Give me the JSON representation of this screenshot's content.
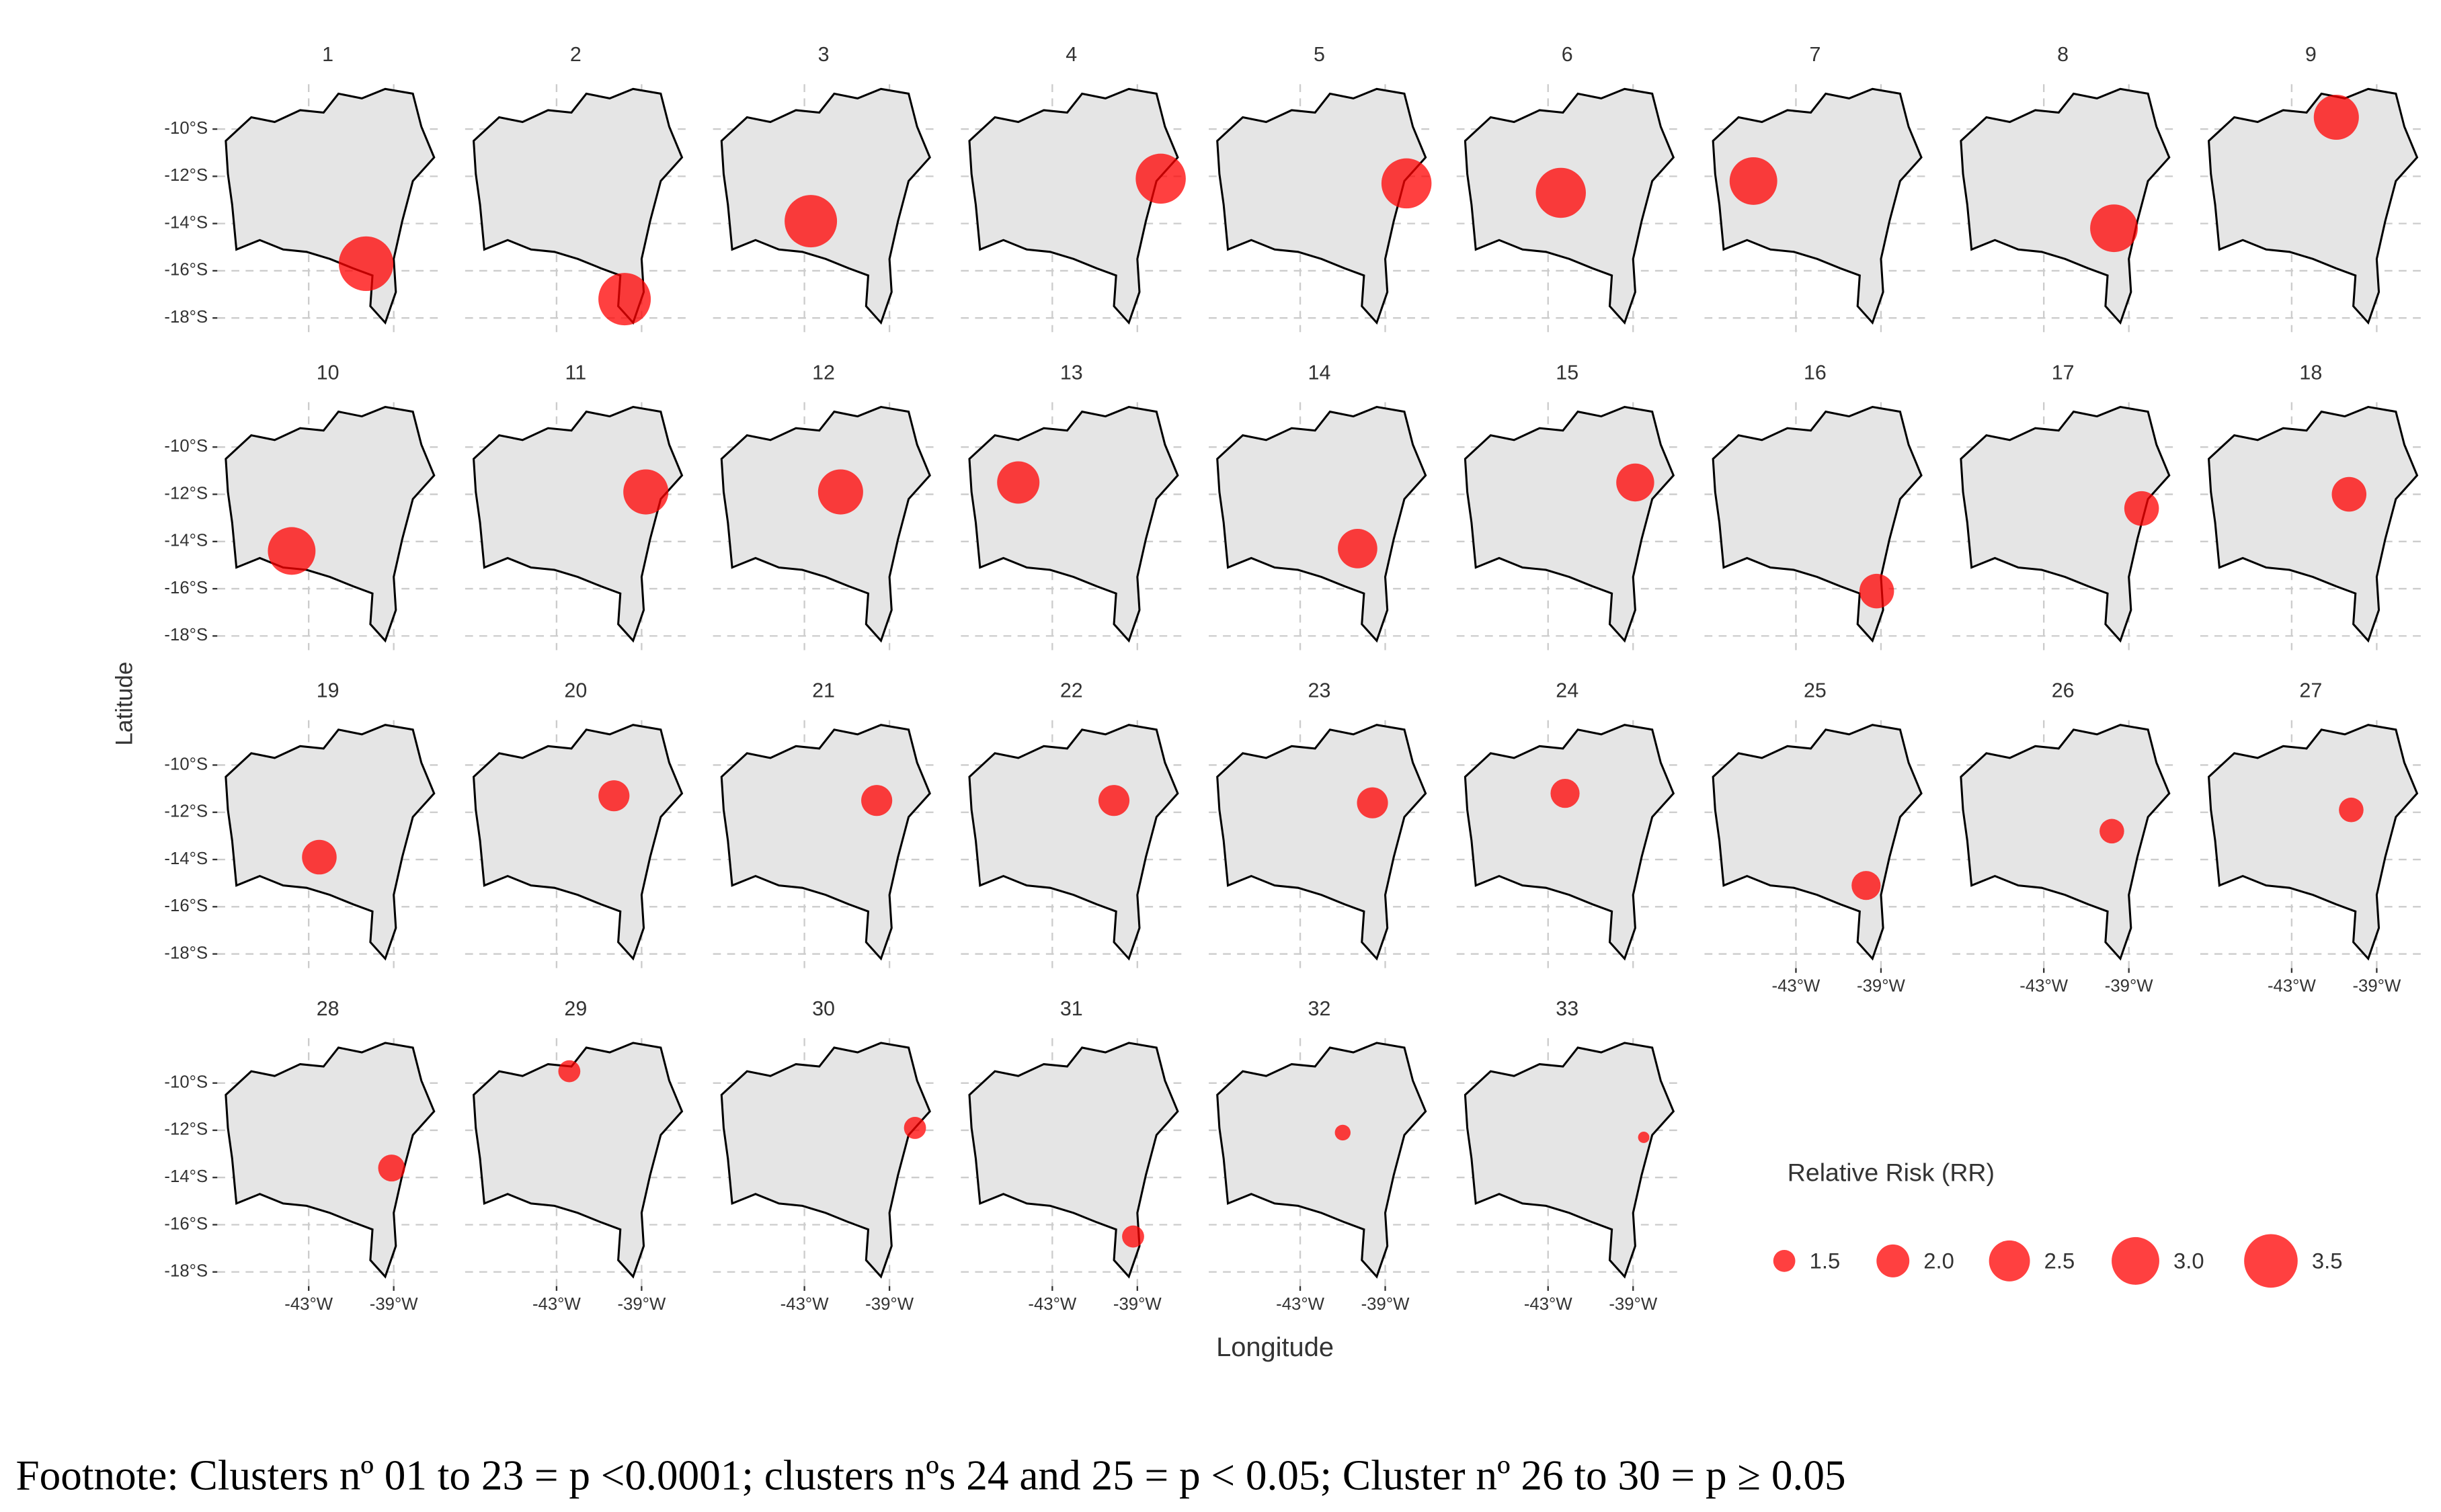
{
  "chart_data": {
    "type": "bubble-map",
    "xlabel": "Longitude",
    "ylabel": "Latitude",
    "xlim": [
      -47.3,
      -36.9
    ],
    "ylim": [
      -18.6,
      -8.1
    ],
    "xticks": [
      {
        "value": -43,
        "label": "-43°W"
      },
      {
        "value": -39,
        "label": "-39°W"
      }
    ],
    "yticks": [
      {
        "value": -10,
        "label": "-10°S"
      },
      {
        "value": -12,
        "label": "-12°S"
      },
      {
        "value": -14,
        "label": "-14°S"
      },
      {
        "value": -16,
        "label": "-16°S"
      },
      {
        "value": -18,
        "label": "-18°S"
      }
    ],
    "grid": true,
    "color": "#ff0000",
    "legend": {
      "title": "Relative Risk (RR)",
      "sizes": [
        1.5,
        {
          "value": 2,
          "label": "2.0"
        },
        2.5,
        {
          "value": 3,
          "label": "3.0"
        },
        3.5
      ]
    },
    "facets": [
      {
        "title": "1",
        "lon": -40.3,
        "lat": -15.7,
        "rr": 3.6
      },
      {
        "title": "2",
        "lon": -39.8,
        "lat": -17.2,
        "rr": 3.4
      },
      {
        "title": "3",
        "lon": -42.7,
        "lat": -13.9,
        "rr": 3.4
      },
      {
        "title": "4",
        "lon": -37.9,
        "lat": -12.1,
        "rr": 3.2
      },
      {
        "title": "5",
        "lon": -38.0,
        "lat": -12.3,
        "rr": 3.2
      },
      {
        "title": "6",
        "lon": -42.4,
        "lat": -12.7,
        "rr": 3.2
      },
      {
        "title": "7",
        "lon": -45.0,
        "lat": -12.2,
        "rr": 3.0
      },
      {
        "title": "8",
        "lon": -39.7,
        "lat": -14.2,
        "rr": 3.0
      },
      {
        "title": "9",
        "lon": -40.9,
        "lat": -9.5,
        "rr": 2.8
      },
      {
        "title": "10",
        "lon": -43.8,
        "lat": -14.4,
        "rr": 3.0
      },
      {
        "title": "11",
        "lon": -38.8,
        "lat": -11.9,
        "rr": 2.8
      },
      {
        "title": "12",
        "lon": -41.3,
        "lat": -11.9,
        "rr": 2.8
      },
      {
        "title": "13",
        "lon": -44.6,
        "lat": -11.5,
        "rr": 2.6
      },
      {
        "title": "14",
        "lon": -40.3,
        "lat": -14.3,
        "rr": 2.4
      },
      {
        "title": "15",
        "lon": -38.9,
        "lat": -11.5,
        "rr": 2.3
      },
      {
        "title": "16",
        "lon": -39.2,
        "lat": -16.1,
        "rr": 2.1
      },
      {
        "title": "17",
        "lon": -38.4,
        "lat": -12.6,
        "rr": 2.1
      },
      {
        "title": "18",
        "lon": -40.3,
        "lat": -12.0,
        "rr": 2.1
      },
      {
        "title": "19",
        "lon": -42.5,
        "lat": -13.9,
        "rr": 2.1
      },
      {
        "title": "20",
        "lon": -40.3,
        "lat": -11.3,
        "rr": 1.9
      },
      {
        "title": "21",
        "lon": -39.6,
        "lat": -11.5,
        "rr": 1.9
      },
      {
        "title": "22",
        "lon": -40.1,
        "lat": -11.5,
        "rr": 1.9
      },
      {
        "title": "23",
        "lon": -39.6,
        "lat": -11.6,
        "rr": 1.9
      },
      {
        "title": "24",
        "lon": -42.2,
        "lat": -11.2,
        "rr": 1.8
      },
      {
        "title": "25",
        "lon": -39.7,
        "lat": -15.1,
        "rr": 1.8
      },
      {
        "title": "26",
        "lon": -39.8,
        "lat": -12.8,
        "rr": 1.6
      },
      {
        "title": "27",
        "lon": -40.2,
        "lat": -11.9,
        "rr": 1.6
      },
      {
        "title": "28",
        "lon": -39.1,
        "lat": -13.6,
        "rr": 1.7
      },
      {
        "title": "29",
        "lon": -42.4,
        "lat": -9.5,
        "rr": 1.5
      },
      {
        "title": "30",
        "lon": -37.8,
        "lat": -11.9,
        "rr": 1.5
      },
      {
        "title": "31",
        "lon": -39.2,
        "lat": -16.5,
        "rr": 1.5
      },
      {
        "title": "32",
        "lon": -41.0,
        "lat": -12.1,
        "rr": 1.3
      },
      {
        "title": "33",
        "lon": -38.5,
        "lat": -12.3,
        "rr": 1.2
      }
    ]
  },
  "footnote": "Footnote: Clusters nº 01 to 23 = p <0.0001; clusters nºs 24 and 25 = p < 0.05; Cluster nº 26 to 30 = p ≥ 0.05"
}
